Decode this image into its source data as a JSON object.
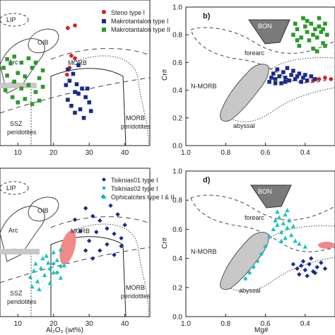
{
  "colors": {
    "steno": "#d62020",
    "makro": "#1a2b8c",
    "makro2": "#2a9a2a",
    "tsik1": "#1a2b8c",
    "tsik2": "#19c2c2",
    "ophi": "#19c2c2",
    "field_gray": "#c8c8c8",
    "bon_gray": "#7a7a7a",
    "pink": "#f08a8a"
  },
  "chart_data": [
    {
      "type": "scatter",
      "panel": "a",
      "xlabel": "",
      "ylabel": "",
      "xlim": [
        5,
        47
      ],
      "xticks": [
        10,
        20,
        30,
        40
      ],
      "field_labels": [
        "LIP",
        "OIB",
        "Arc",
        "MORB",
        "SSZ",
        "peridotites",
        "MORB",
        "peridotites"
      ],
      "legend": [
        "Steno type I",
        "Makrotantalon type I",
        "Makrotantalon type II"
      ],
      "series": [
        {
          "name": "Steno type I",
          "color_key": "steno",
          "marker": "circle",
          "points": [
            [
              24,
              17.6
            ],
            [
              26,
              17.9
            ],
            [
              25,
              14.4
            ],
            [
              26,
              14.1
            ],
            [
              24.5,
              13.0
            ],
            [
              23.8,
              12.2
            ]
          ]
        },
        {
          "name": "Makrotantalon type I",
          "color_key": "makro",
          "marker": "square",
          "points": [
            [
              23.5,
              11.0
            ],
            [
              24.5,
              11.5
            ],
            [
              25.5,
              12.3
            ],
            [
              26.5,
              11.1
            ],
            [
              27,
              10.0
            ],
            [
              28,
              10.6
            ],
            [
              29,
              9.6
            ],
            [
              30,
              9.0
            ],
            [
              24,
              9.3
            ],
            [
              25,
              8.6
            ],
            [
              26,
              7.8
            ],
            [
              27.5,
              8.2
            ],
            [
              28.5,
              7.2
            ],
            [
              30.5,
              8.0
            ],
            [
              26,
              10.2
            ],
            [
              29.5,
              10.6
            ],
            [
              24,
              12.8
            ],
            [
              27,
              13.3
            ]
          ]
        },
        {
          "name": "Makrotantalon type II",
          "color_key": "makro2",
          "marker": "square",
          "points": [
            [
              6,
              13.0
            ],
            [
              7,
              12.1
            ],
            [
              8,
              13.5
            ],
            [
              9,
              11.4
            ],
            [
              10,
              12.4
            ],
            [
              11,
              10.6
            ],
            [
              12,
              12.0
            ],
            [
              13,
              11.0
            ],
            [
              14,
              13.0
            ],
            [
              15,
              10.2
            ],
            [
              16,
              11.8
            ],
            [
              17,
              10.8
            ],
            [
              6.5,
              10.4
            ],
            [
              8.5,
              9.6
            ],
            [
              10,
              9.0
            ],
            [
              12,
              9.4
            ],
            [
              14,
              8.8
            ],
            [
              16,
              9.2
            ],
            [
              7,
              14.0
            ],
            [
              9,
              14.3
            ],
            [
              11,
              13.6
            ],
            [
              13,
              14.1
            ],
            [
              15,
              13.6
            ],
            [
              17,
              12.7
            ]
          ]
        }
      ]
    },
    {
      "type": "scatter",
      "panel": "b",
      "panel_label": "b)",
      "xlabel": "",
      "ylabel": "Cr#",
      "xlim": [
        1.0,
        0.25
      ],
      "ylim": [
        0.0,
        1.0
      ],
      "xticks": [
        1.0,
        0.8,
        0.6,
        0.4
      ],
      "xtick_labels": [
        "1.0",
        "0.8",
        "0.6",
        "0.4"
      ],
      "yticks": [
        0.0,
        0.2,
        0.4,
        0.6,
        0.8,
        1.0
      ],
      "ytick_labels": [
        "0.0",
        "0.2",
        "0.4",
        "0.6",
        "0.8",
        "1.0"
      ],
      "field_labels": [
        "BON",
        "forearc",
        "N-MORB",
        "abyssal"
      ],
      "series": [
        {
          "name": "Steno type I",
          "color_key": "steno",
          "marker": "circle",
          "points": [
            [
              0.33,
              0.48
            ],
            [
              0.3,
              0.49
            ],
            [
              0.27,
              0.48
            ],
            [
              0.36,
              0.47
            ]
          ]
        },
        {
          "name": "Makrotantalon type I",
          "color_key": "makro",
          "marker": "square",
          "points": [
            [
              0.58,
              0.46
            ],
            [
              0.56,
              0.52
            ],
            [
              0.55,
              0.48
            ],
            [
              0.54,
              0.55
            ],
            [
              0.53,
              0.5
            ],
            [
              0.52,
              0.45
            ],
            [
              0.51,
              0.53
            ],
            [
              0.5,
              0.49
            ],
            [
              0.49,
              0.56
            ],
            [
              0.48,
              0.47
            ],
            [
              0.47,
              0.51
            ],
            [
              0.46,
              0.54
            ],
            [
              0.45,
              0.48
            ],
            [
              0.44,
              0.5
            ],
            [
              0.43,
              0.52
            ],
            [
              0.42,
              0.46
            ],
            [
              0.41,
              0.49
            ],
            [
              0.4,
              0.51
            ],
            [
              0.39,
              0.47
            ],
            [
              0.37,
              0.5
            ],
            [
              0.35,
              0.48
            ],
            [
              0.57,
              0.49
            ],
            [
              0.55,
              0.45
            ],
            [
              0.5,
              0.46
            ]
          ]
        },
        {
          "name": "Makrotantalon type II",
          "color_key": "makro2",
          "marker": "square",
          "points": [
            [
              0.46,
              0.8
            ],
            [
              0.44,
              0.84
            ],
            [
              0.42,
              0.78
            ],
            [
              0.4,
              0.86
            ],
            [
              0.39,
              0.82
            ],
            [
              0.38,
              0.76
            ],
            [
              0.37,
              0.88
            ],
            [
              0.36,
              0.8
            ],
            [
              0.35,
              0.84
            ],
            [
              0.34,
              0.78
            ],
            [
              0.33,
              0.86
            ],
            [
              0.32,
              0.82
            ],
            [
              0.31,
              0.74
            ],
            [
              0.3,
              0.88
            ],
            [
              0.29,
              0.8
            ],
            [
              0.45,
              0.88
            ],
            [
              0.43,
              0.72
            ],
            [
              0.41,
              0.92
            ],
            [
              0.36,
              0.7
            ],
            [
              0.33,
              0.92
            ],
            [
              0.3,
              0.72
            ],
            [
              0.44,
              0.76
            ],
            [
              0.39,
              0.9
            ],
            [
              0.34,
              0.68
            ],
            [
              0.31,
              0.84
            ]
          ]
        }
      ]
    },
    {
      "type": "scatter",
      "panel": "c",
      "xlabel": "Al₂O₃ (wt%)",
      "ylabel": "",
      "xlim": [
        5,
        47
      ],
      "xticks": [
        10,
        20,
        30,
        40
      ],
      "field_labels": [
        "LIP",
        "OIB",
        "Arc",
        "MORB",
        "SSZ",
        "peridotites",
        "MORB",
        "peridotites"
      ],
      "legend": [
        "Tsiknias01 type I",
        "Tsiknias02 type I",
        "Ophicalcites type I & II"
      ],
      "series": [
        {
          "name": "Tsiknias01 type I",
          "color_key": "tsik1",
          "marker": "diamond",
          "points": [
            [
              29,
              16.3
            ],
            [
              31,
              15.4
            ],
            [
              33,
              14.9
            ],
            [
              35,
              14.0
            ],
            [
              37,
              13.4
            ],
            [
              39,
              12.9
            ],
            [
              40,
              14.4
            ],
            [
              38,
              15.6
            ],
            [
              36,
              16.6
            ],
            [
              34,
              17.6
            ],
            [
              32,
              13.6
            ],
            [
              30,
              12.6
            ],
            [
              29,
              11.5
            ],
            [
              31,
              10.6
            ],
            [
              33,
              11.5
            ],
            [
              35,
              12.2
            ],
            [
              37,
              11.0
            ],
            [
              39,
              12.0
            ],
            [
              27.5,
              13.7
            ],
            [
              26,
              15.0
            ]
          ]
        },
        {
          "name": "Tsiknias02 type I",
          "color_key": "tsik2",
          "marker": "diamond",
          "points": [
            [
              19,
              9.4
            ],
            [
              20,
              10.0
            ],
            [
              21,
              9.0
            ],
            [
              22,
              9.7
            ]
          ]
        },
        {
          "name": "Ophicalcites type I & II",
          "color_key": "ophi",
          "marker": "triangle",
          "points": [
            [
              13.5,
              8.5
            ],
            [
              14.5,
              9.2
            ],
            [
              15.5,
              8.0
            ],
            [
              16.5,
              9.5
            ],
            [
              17.5,
              8.7
            ],
            [
              18.5,
              10.1
            ],
            [
              19,
              7.8
            ],
            [
              20,
              9.0
            ],
            [
              21,
              10.4
            ],
            [
              22,
              8.4
            ],
            [
              23,
              9.8
            ],
            [
              14,
              7.4
            ],
            [
              16,
              7.1
            ],
            [
              18,
              10.9
            ],
            [
              20,
              11.3
            ],
            [
              22,
              11.6
            ],
            [
              15,
              10.0
            ],
            [
              17,
              10.6
            ]
          ]
        }
      ]
    },
    {
      "type": "scatter",
      "panel": "d",
      "panel_label": "d)",
      "xlabel": "Mg#",
      "ylabel": "Cr#",
      "xlim": [
        1.0,
        0.25
      ],
      "ylim": [
        0.0,
        1.0
      ],
      "xticks": [
        1.0,
        0.8,
        0.6,
        0.4
      ],
      "xtick_labels": [
        "1.0",
        "0.8",
        "0.6",
        "0.4"
      ],
      "yticks": [
        0.0,
        0.2,
        0.4,
        0.6,
        0.8,
        1.0
      ],
      "ytick_labels": [
        "0.0",
        "0.2",
        "0.4",
        "0.6",
        "0.8",
        "1.0"
      ],
      "field_labels": [
        "BON",
        "forearc",
        "N-MORB",
        "abyssal"
      ],
      "series": [
        {
          "name": "Tsiknias01 type I",
          "color_key": "tsik1",
          "marker": "diamond",
          "points": [
            [
              0.46,
              0.36
            ],
            [
              0.44,
              0.33
            ],
            [
              0.42,
              0.35
            ],
            [
              0.4,
              0.32
            ],
            [
              0.38,
              0.36
            ],
            [
              0.36,
              0.31
            ],
            [
              0.34,
              0.34
            ],
            [
              0.32,
              0.37
            ],
            [
              0.3,
              0.33
            ],
            [
              0.43,
              0.29
            ],
            [
              0.39,
              0.28
            ],
            [
              0.35,
              0.3
            ],
            [
              0.41,
              0.38
            ],
            [
              0.37,
              0.4
            ]
          ]
        },
        {
          "name": "Tsiknias02 type I",
          "color_key": "tsik2",
          "marker": "diamond",
          "points": [
            [
              0.7,
              0.26
            ],
            [
              0.68,
              0.3
            ],
            [
              0.66,
              0.34
            ],
            [
              0.64,
              0.38
            ],
            [
              0.62,
              0.43
            ],
            [
              0.6,
              0.48
            ]
          ]
        },
        {
          "name": "Ophicalcites type I & II",
          "color_key": "ophi",
          "marker": "triangle",
          "points": [
            [
              0.58,
              0.55
            ],
            [
              0.56,
              0.6
            ],
            [
              0.55,
              0.66
            ],
            [
              0.54,
              0.63
            ],
            [
              0.53,
              0.68
            ],
            [
              0.52,
              0.58
            ],
            [
              0.51,
              0.64
            ],
            [
              0.5,
              0.7
            ],
            [
              0.49,
              0.61
            ],
            [
              0.48,
              0.66
            ],
            [
              0.47,
              0.56
            ],
            [
              0.46,
              0.62
            ],
            [
              0.52,
              0.52
            ],
            [
              0.5,
              0.54
            ],
            [
              0.45,
              0.52
            ],
            [
              0.43,
              0.5
            ],
            [
              0.4,
              0.48
            ],
            [
              0.54,
              0.72
            ],
            [
              0.49,
              0.73
            ]
          ]
        }
      ]
    }
  ]
}
